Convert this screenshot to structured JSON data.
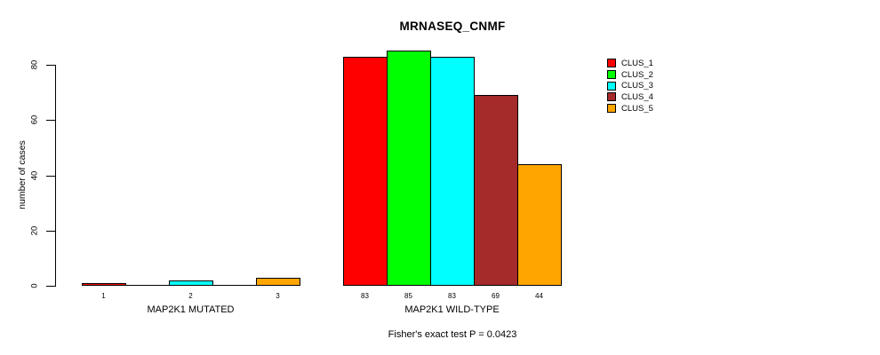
{
  "title": "MRNASEQ_CNMF",
  "caption": "Fisher's exact test P = 0.0423",
  "chart_data": {
    "type": "bar",
    "title": "MRNASEQ_CNMF",
    "xlabel": "",
    "ylabel": "number of cases",
    "ylim": [
      0,
      80
    ],
    "yticks": [
      0,
      20,
      40,
      60,
      80
    ],
    "grid": false,
    "legend_position": "right",
    "bar_border_color": "#000000",
    "series_colors": [
      "#ff0000",
      "#00ff00",
      "#00ffff",
      "#a52a2a",
      "#ffa500"
    ],
    "groups": [
      {
        "label": "MAP2K1 MUTATED",
        "values": [
          1,
          0,
          2,
          0,
          3
        ],
        "bar_labels": [
          "1",
          "",
          "2",
          "",
          "3"
        ]
      },
      {
        "label": "MAP2K1 WILD-TYPE",
        "values": [
          83,
          85,
          83,
          69,
          44
        ],
        "bar_labels": [
          "83",
          "85",
          "83",
          "69",
          "44"
        ]
      }
    ],
    "legend": [
      {
        "label": "CLUS_1",
        "color": "#ff0000"
      },
      {
        "label": "CLUS_2",
        "color": "#00ff00"
      },
      {
        "label": "CLUS_3",
        "color": "#00ffff"
      },
      {
        "label": "CLUS_4",
        "color": "#a52a2a"
      },
      {
        "label": "CLUS_5",
        "color": "#ffa500"
      }
    ],
    "caption": "Fisher's exact test P = 0.0423"
  }
}
